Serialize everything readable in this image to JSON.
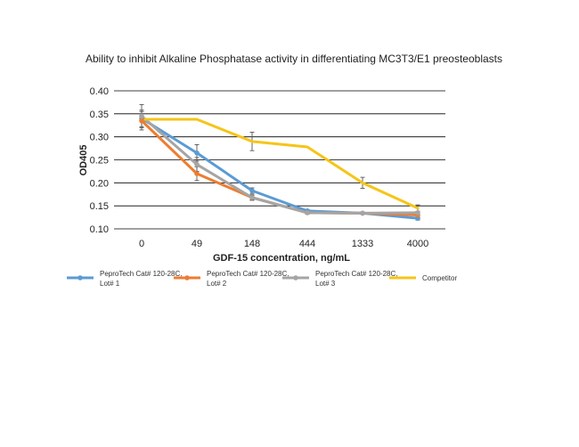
{
  "chart_data": {
    "type": "line",
    "title": "Ability to inhibit Alkaline Phosphatase activity in differentiating MC3T3/E1 preosteoblasts",
    "xlabel": "GDF-15 concentration, ng/mL",
    "ylabel": "OD405",
    "categories": [
      "0",
      "49",
      "148",
      "444",
      "1333",
      "4000"
    ],
    "ylim": [
      0.1,
      0.4
    ],
    "yticks": [
      "0.10",
      "0.15",
      "0.20",
      "0.25",
      "0.30",
      "0.35",
      "0.40"
    ],
    "yticks_values": [
      0.1,
      0.15,
      0.2,
      0.25,
      0.3,
      0.35,
      0.4
    ],
    "grid": true,
    "legend_position": "bottom",
    "series": [
      {
        "name_lines": [
          "PeproTech Cat# 120-28C,",
          "Lot# 1"
        ],
        "color": "#5B9BD5",
        "marker": "circle",
        "values": [
          0.34,
          0.265,
          0.183,
          0.139,
          0.134,
          0.123
        ],
        "errors": [
          0.018,
          0.018,
          0.006,
          0.003,
          0.002,
          0.004
        ]
      },
      {
        "name_lines": [
          "PeproTech Cat# 120-28C,",
          "Lot# 2"
        ],
        "color": "#ED7D31",
        "marker": "circle",
        "values": [
          0.335,
          0.22,
          0.168,
          0.135,
          0.134,
          0.13
        ],
        "errors": [
          0.02,
          0.015,
          0.005,
          0.003,
          0.002,
          0.003
        ]
      },
      {
        "name_lines": [
          "PeproTech Cat# 120-28C,",
          "Lot# 3"
        ],
        "color": "#A5A5A5",
        "marker": "circle",
        "values": [
          0.345,
          0.24,
          0.168,
          0.135,
          0.134,
          0.135
        ],
        "errors": [
          0.025,
          0.015,
          0.006,
          0.003,
          0.002,
          0.003
        ]
      },
      {
        "name_lines": [
          "Competitor"
        ],
        "color": "#F5C518",
        "marker": "none",
        "values": [
          0.338,
          0.338,
          0.29,
          0.278,
          0.2,
          0.145
        ],
        "errors": [
          0.0,
          0.0,
          0.02,
          0.0,
          0.012,
          0.007
        ]
      }
    ]
  }
}
